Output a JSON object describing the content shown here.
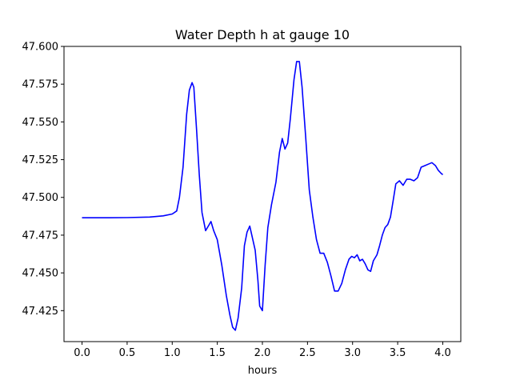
{
  "chart_data": {
    "type": "line",
    "title": "Water Depth h at gauge 10",
    "xlabel": "hours",
    "ylabel": "",
    "xlim": [
      -0.2,
      4.2
    ],
    "ylim": [
      47.4045,
      47.6
    ],
    "xticks": [
      0.0,
      0.5,
      1.0,
      1.5,
      2.0,
      2.5,
      3.0,
      3.5,
      4.0
    ],
    "xtick_labels": [
      "0.0",
      "0.5",
      "1.0",
      "1.5",
      "2.0",
      "2.5",
      "3.0",
      "3.5",
      "4.0"
    ],
    "yticks": [
      47.425,
      47.45,
      47.475,
      47.5,
      47.525,
      47.55,
      47.575,
      47.6
    ],
    "ytick_labels": [
      "47.425",
      "47.450",
      "47.475",
      "47.500",
      "47.525",
      "47.550",
      "47.575",
      "47.600"
    ],
    "grid": false,
    "series": [
      {
        "color": "#0000ff",
        "x": [
          0.0,
          0.3,
          0.5,
          0.75,
          0.9,
          1.0,
          1.05,
          1.08,
          1.12,
          1.16,
          1.19,
          1.22,
          1.24,
          1.27,
          1.3,
          1.33,
          1.37,
          1.4,
          1.43,
          1.46,
          1.5,
          1.55,
          1.6,
          1.64,
          1.67,
          1.7,
          1.73,
          1.77,
          1.8,
          1.83,
          1.86,
          1.89,
          1.92,
          1.95,
          1.97,
          2.0,
          2.03,
          2.06,
          2.1,
          2.15,
          2.19,
          2.22,
          2.25,
          2.28,
          2.31,
          2.35,
          2.38,
          2.41,
          2.44,
          2.48,
          2.52,
          2.56,
          2.6,
          2.64,
          2.68,
          2.72,
          2.76,
          2.8,
          2.84,
          2.88,
          2.92,
          2.96,
          2.99,
          3.02,
          3.05,
          3.08,
          3.11,
          3.14,
          3.17,
          3.2,
          3.23,
          3.27,
          3.3,
          3.33,
          3.36,
          3.39,
          3.42,
          3.45,
          3.48,
          3.52,
          3.56,
          3.6,
          3.64,
          3.68,
          3.72,
          3.76,
          3.8,
          3.84,
          3.88,
          3.92,
          3.95,
          3.98,
          4.0
        ],
        "values": [
          47.4865,
          47.4865,
          47.4866,
          47.487,
          47.4878,
          47.489,
          47.491,
          47.5,
          47.52,
          47.555,
          47.571,
          47.576,
          47.573,
          47.545,
          47.515,
          47.49,
          47.478,
          47.481,
          47.484,
          47.478,
          47.472,
          47.455,
          47.435,
          47.422,
          47.414,
          47.412,
          47.42,
          47.44,
          47.468,
          47.477,
          47.481,
          47.473,
          47.465,
          47.445,
          47.428,
          47.425,
          47.455,
          47.48,
          47.495,
          47.51,
          47.53,
          47.539,
          47.532,
          47.536,
          47.552,
          47.578,
          47.59,
          47.59,
          47.573,
          47.54,
          47.505,
          47.487,
          47.472,
          47.463,
          47.463,
          47.457,
          47.448,
          47.438,
          47.438,
          47.443,
          47.452,
          47.459,
          47.461,
          47.46,
          47.462,
          47.458,
          47.459,
          47.456,
          47.452,
          47.451,
          47.458,
          47.462,
          47.468,
          47.475,
          47.48,
          47.482,
          47.487,
          47.498,
          47.509,
          47.511,
          47.508,
          47.512,
          47.512,
          47.511,
          47.513,
          47.52,
          47.521,
          47.522,
          47.523,
          47.521,
          47.518,
          47.516,
          47.515
        ]
      }
    ]
  }
}
